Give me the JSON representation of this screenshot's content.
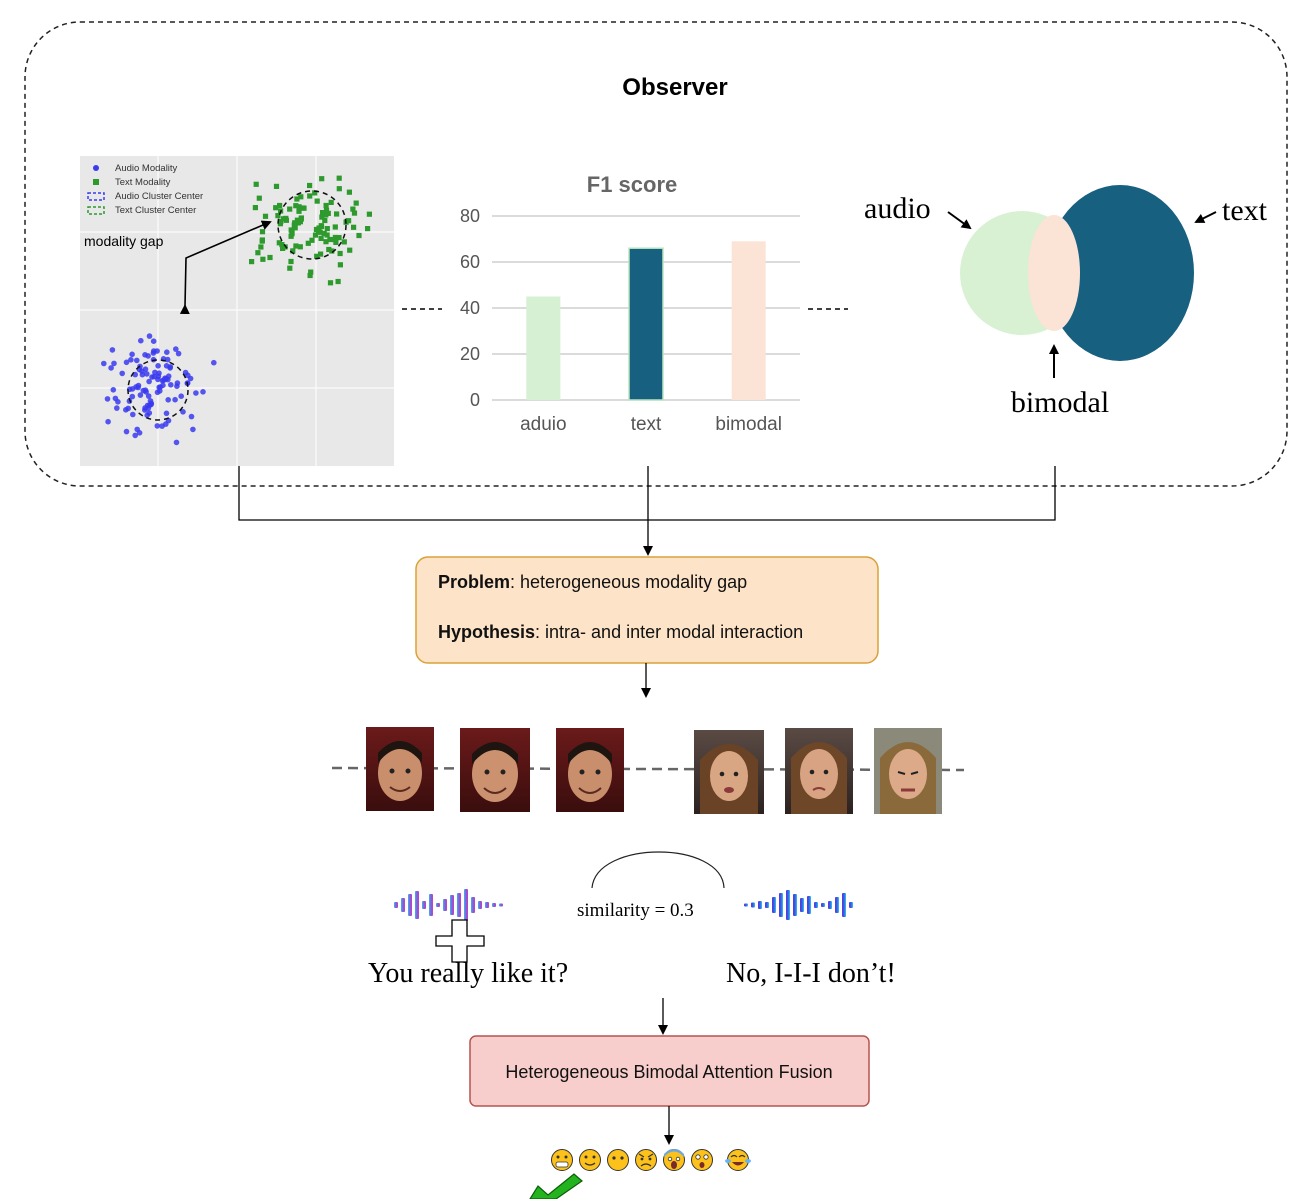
{
  "observer": {
    "title": "Observer"
  },
  "scatter": {
    "legend": [
      "Audio Modality",
      "Text Modality",
      "Audio Cluster Center",
      "Text Cluster Center"
    ],
    "annotation": "modality gap",
    "colors": {
      "audio": "#3a3af0",
      "text": "#2e9a2e",
      "background": "#e8e8e8"
    }
  },
  "chart_data": {
    "type": "bar",
    "title": "F1 score",
    "categories": [
      "aduio",
      "text",
      "bimodal"
    ],
    "values": [
      45,
      66,
      69
    ],
    "yticks": [
      0,
      20,
      40,
      60,
      80
    ],
    "ylim": [
      0,
      80
    ],
    "grid": true,
    "colors": [
      "#d5f0d2",
      "#17607f",
      "#fbe3d6"
    ]
  },
  "venn": {
    "audio_label": "audio",
    "text_label": "text",
    "bimodal_label": "bimodal",
    "colors": {
      "audio": "#d8f1d3",
      "text": "#17607f",
      "overlap": "#fbe3d6"
    }
  },
  "problem_box": {
    "problem_label": "Problem",
    "problem_text": ": heterogeneous modality gap",
    "hypothesis_label": "Hypothesis",
    "hypothesis_text": ": intra- and inter modal interaction",
    "fill": "#fde3c7",
    "stroke": "#d9a13a"
  },
  "speech": {
    "similarity": "similarity = 0.3",
    "utterance_1": "You really like it?",
    "utterance_2": "No, I-I-I don’t!"
  },
  "fusion_box": {
    "label": "Heterogeneous Bimodal Attention Fusion",
    "fill": "#f8cecc",
    "stroke": "#b85450"
  },
  "emotions": {
    "icons": [
      "grinning-face-icon",
      "slightly-smiling-face-icon",
      "no-mouth-face-icon",
      "angry-face-icon",
      "screaming-face-icon",
      "astonished-face-icon",
      "tears-of-joy-face-icon"
    ]
  }
}
